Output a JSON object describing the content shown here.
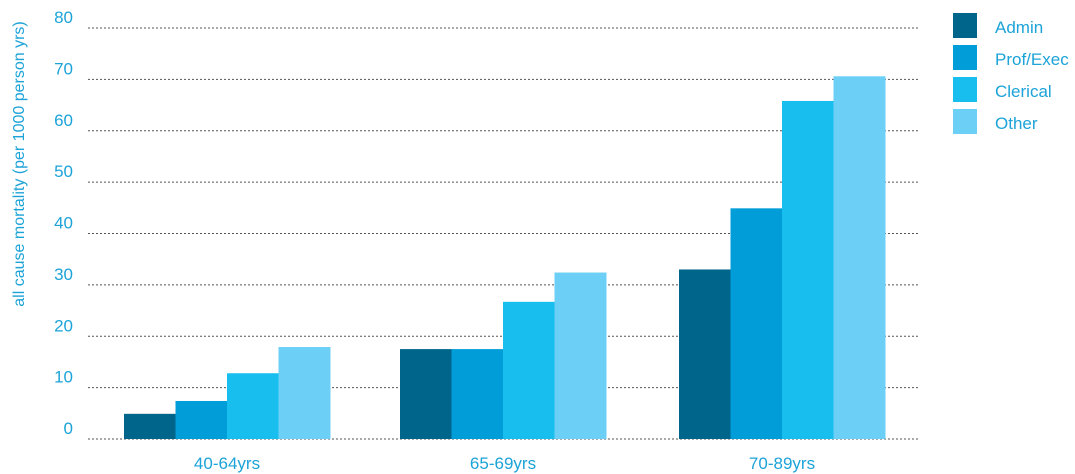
{
  "chart_data": {
    "type": "bar",
    "title": "",
    "xlabel": "",
    "ylabel": "all cause mortality (per 1000 person yrs)",
    "ylim": [
      0,
      80
    ],
    "yticks": [
      0,
      10,
      20,
      30,
      40,
      50,
      60,
      70,
      80
    ],
    "grid": true,
    "legend_position": "top-right",
    "categories": [
      "40-64yrs",
      "65-69yrs",
      "70-89yrs"
    ],
    "series": [
      {
        "name": "Admin",
        "color": "#00658a",
        "values": [
          4.9,
          17.5,
          33
        ]
      },
      {
        "name": "Prof/Exec",
        "color": "#009dd9",
        "values": [
          7.4,
          17.5,
          44.9
        ]
      },
      {
        "name": "Clerical",
        "color": "#18bfee",
        "values": [
          12.8,
          26.7,
          65.8
        ]
      },
      {
        "name": "Other",
        "color": "#6ccff6",
        "values": [
          17.9,
          32.4,
          70.6
        ]
      }
    ]
  }
}
